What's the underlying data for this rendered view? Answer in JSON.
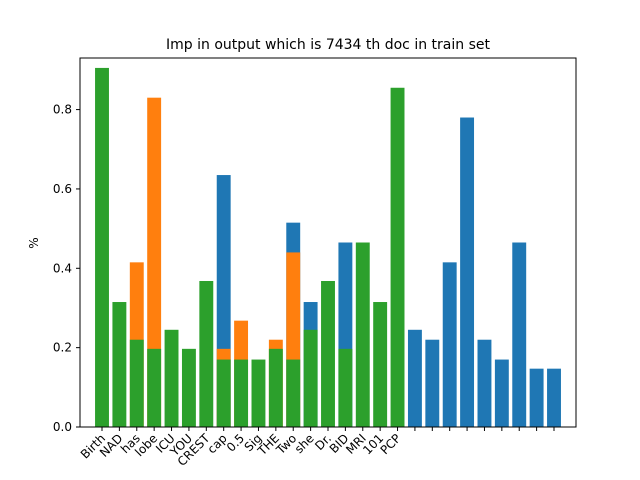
{
  "chart_data": {
    "type": "bar",
    "title": "Imp in output which is 7434 th doc in train set",
    "xlabel": "",
    "ylabel": "%",
    "ylim": [
      0,
      0.93
    ],
    "yticks": [
      0.0,
      0.2,
      0.4,
      0.6,
      0.8
    ],
    "ytick_labels": [
      "0.0",
      "0.2",
      "0.4",
      "0.6",
      "0.8"
    ],
    "grid": false,
    "legend": "none",
    "tick_labels": [
      "Birth",
      "NAD",
      "has",
      "lobe",
      "ICU",
      "YOU",
      "CREST",
      "cap",
      "0.5",
      "Sig",
      "THE",
      "Two",
      "she",
      "Dr.",
      "BID",
      "MRI",
      "101",
      "PCP"
    ],
    "colors": {
      "blue": "#1f77b4",
      "orange": "#ff7f0e",
      "green": "#2ca02c"
    },
    "series": [
      {
        "color": "blue",
        "values": [
          null,
          null,
          null,
          null,
          null,
          null,
          null,
          0.635,
          null,
          null,
          null,
          0.515,
          0.315,
          null,
          0.465,
          null,
          null,
          null,
          0.245,
          0.22,
          0.415,
          0.78,
          0.22,
          0.17,
          0.465,
          0.147,
          0.147
        ]
      },
      {
        "color": "orange",
        "values": [
          null,
          null,
          0.415,
          0.83,
          null,
          null,
          null,
          0.197,
          0.268,
          null,
          0.22,
          0.44,
          null,
          null,
          null,
          null,
          null,
          null,
          null,
          null,
          null,
          null,
          null,
          null,
          null,
          null,
          null
        ]
      },
      {
        "color": "green",
        "values": [
          0.905,
          0.315,
          0.22,
          0.197,
          0.245,
          0.197,
          0.368,
          0.17,
          0.17,
          0.17,
          0.197,
          0.17,
          0.245,
          0.368,
          0.197,
          0.465,
          0.315,
          0.855,
          null,
          null,
          null,
          null,
          null,
          null,
          null,
          null,
          null
        ]
      }
    ]
  }
}
